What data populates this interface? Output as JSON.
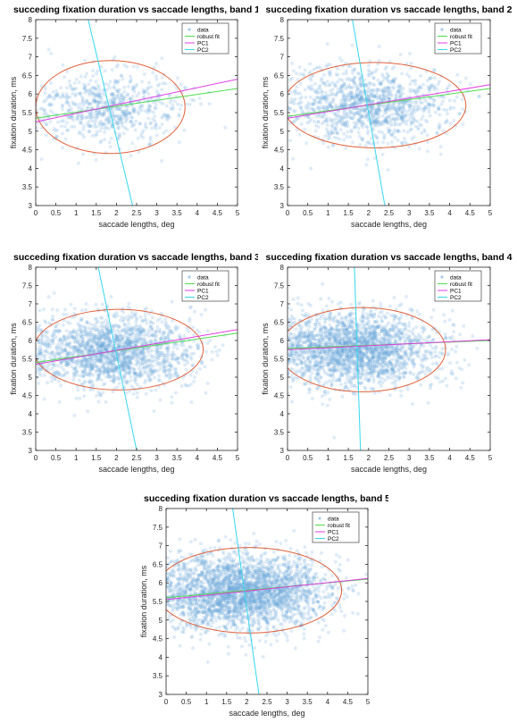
{
  "colors": {
    "data": "#6fa8dc",
    "robust_fit": "#4ddc4d",
    "pc1": "#e23ce2",
    "pc2": "#35d7ee",
    "ellipse": "#e0603a",
    "mean_line": "#777777"
  },
  "chart_data": [
    {
      "type": "scatter",
      "title": "succeding fixation duration vs saccade lengths, band 1",
      "xlabel": "saccade lengths, deg",
      "ylabel": "fixation duration, ms",
      "xlim": [
        0,
        5
      ],
      "ylim": [
        3,
        8
      ],
      "xticks": [
        "0",
        "0.5",
        "1",
        "1.5",
        "2",
        "2.5",
        "3",
        "3.5",
        "4",
        "4.5",
        "5"
      ],
      "yticks": [
        "3",
        "3.5",
        "4",
        "4.5",
        "5",
        "5.5",
        "6",
        "6.5",
        "7",
        "7.5",
        "8"
      ],
      "legend": [
        "data",
        "robust fit",
        "PC1",
        "PC2"
      ],
      "legend_placement": "top-right",
      "grid": false,
      "scatter_center": [
        1.8,
        5.6
      ],
      "scatter_spread": [
        0.9,
        0.5
      ],
      "n_points": 700,
      "robust_fit": [
        [
          0,
          5.35
        ],
        [
          5,
          6.15
        ]
      ],
      "pc1": [
        [
          0,
          5.25
        ],
        [
          5,
          6.4
        ]
      ],
      "pc2": [
        [
          1.3,
          8
        ],
        [
          2.4,
          3
        ]
      ],
      "ellipse": {
        "center": [
          1.85,
          5.65
        ],
        "rx": 1.85,
        "ry": 1.25
      }
    },
    {
      "type": "scatter",
      "title": "succeding fixation duration vs saccade lengths, band 2",
      "xlabel": "saccade lengths, deg",
      "ylabel": "fixation duration, ms",
      "xlim": [
        0,
        5
      ],
      "ylim": [
        3,
        8
      ],
      "xticks": [
        "0",
        "0.5",
        "1",
        "1.5",
        "2",
        "2.5",
        "3",
        "3.5",
        "4",
        "4.5",
        "5"
      ],
      "yticks": [
        "3",
        "3.5",
        "4",
        "4.5",
        "5",
        "5.5",
        "6",
        "6.5",
        "7",
        "7.5",
        "8"
      ],
      "legend": [
        "data",
        "robust fit",
        "PC1",
        "PC2"
      ],
      "legend_placement": "top-right",
      "grid": false,
      "scatter_center": [
        2.0,
        5.7
      ],
      "scatter_spread": [
        1.0,
        0.5
      ],
      "n_points": 1200,
      "robust_fit": [
        [
          0,
          5.4
        ],
        [
          5,
          6.15
        ]
      ],
      "pc1": [
        [
          0,
          5.35
        ],
        [
          5,
          6.25
        ]
      ],
      "pc2": [
        [
          1.6,
          8
        ],
        [
          2.4,
          3
        ]
      ],
      "ellipse": {
        "center": [
          2.15,
          5.7
        ],
        "rx": 2.25,
        "ry": 1.15
      }
    },
    {
      "type": "scatter",
      "title": "succeding fixation duration vs saccade lengths, band 3",
      "xlabel": "saccade lengths, deg",
      "ylabel": "fixation duration, ms",
      "xlim": [
        0,
        5
      ],
      "ylim": [
        3,
        8
      ],
      "xticks": [
        "0",
        "0.5",
        "1",
        "1.5",
        "2",
        "2.5",
        "3",
        "3.5",
        "4",
        "4.5",
        "5"
      ],
      "yticks": [
        "3",
        "3.5",
        "4",
        "4.5",
        "5",
        "5.5",
        "6",
        "6.5",
        "7",
        "7.5",
        "8"
      ],
      "legend": [
        "data",
        "robust fit",
        "PC1",
        "PC2"
      ],
      "legend_placement": "top-right",
      "grid": false,
      "scatter_center": [
        1.9,
        5.7
      ],
      "scatter_spread": [
        1.0,
        0.5
      ],
      "n_points": 1800,
      "robust_fit": [
        [
          0,
          5.4
        ],
        [
          5,
          6.2
        ]
      ],
      "pc1": [
        [
          0,
          5.35
        ],
        [
          5,
          6.3
        ]
      ],
      "pc2": [
        [
          1.55,
          8
        ],
        [
          2.5,
          3
        ]
      ],
      "ellipse": {
        "center": [
          2.05,
          5.75
        ],
        "rx": 2.1,
        "ry": 1.1
      }
    },
    {
      "type": "scatter",
      "title": "succeding fixation duration vs saccade lengths, band 4",
      "xlabel": "saccade lengths, deg",
      "ylabel": "fixation duration, ms",
      "xlim": [
        0,
        5
      ],
      "ylim": [
        3,
        8
      ],
      "xticks": [
        "0",
        "0.5",
        "1",
        "1.5",
        "2",
        "2.5",
        "3",
        "3.5",
        "4",
        "4.5",
        "5"
      ],
      "yticks": [
        "3",
        "3.5",
        "4",
        "4.5",
        "5",
        "5.5",
        "6",
        "6.5",
        "7",
        "7.5",
        "8"
      ],
      "legend": [
        "data",
        "robust fit",
        "PC1",
        "PC2"
      ],
      "legend_placement": "top-right",
      "grid": false,
      "scatter_center": [
        1.7,
        5.75
      ],
      "scatter_spread": [
        0.95,
        0.5
      ],
      "n_points": 2200,
      "robust_fit": [
        [
          0,
          5.78
        ],
        [
          5,
          6.0
        ]
      ],
      "pc1": [
        [
          0,
          5.75
        ],
        [
          5,
          6.02
        ]
      ],
      "pc2": [
        [
          1.65,
          8
        ],
        [
          1.8,
          3
        ]
      ],
      "ellipse": {
        "center": [
          1.85,
          5.75
        ],
        "rx": 2.05,
        "ry": 1.15
      }
    },
    {
      "type": "scatter",
      "title": "succeding fixation duration vs saccade lengths, band 5",
      "xlabel": "saccade lengths, deg",
      "ylabel": "fixation duration, ms",
      "xlim": [
        0,
        5
      ],
      "ylim": [
        3,
        8
      ],
      "xticks": [
        "0",
        "0.5",
        "1",
        "1.5",
        "2",
        "2.5",
        "3",
        "3.5",
        "4",
        "4.5",
        "5"
      ],
      "yticks": [
        "3",
        "3.5",
        "4",
        "4.5",
        "5",
        "5.5",
        "6",
        "6.5",
        "7",
        "7.5",
        "8"
      ],
      "legend": [
        "data",
        "robust fit",
        "PC1",
        "PC2"
      ],
      "legend_placement": "top-right",
      "grid": false,
      "scatter_center": [
        1.9,
        5.75
      ],
      "scatter_spread": [
        1.05,
        0.5
      ],
      "n_points": 2800,
      "robust_fit": [
        [
          0,
          5.6
        ],
        [
          5,
          6.1
        ]
      ],
      "pc1": [
        [
          0,
          5.55
        ],
        [
          5,
          6.12
        ]
      ],
      "pc2": [
        [
          1.65,
          8
        ],
        [
          2.3,
          3
        ]
      ],
      "ellipse": {
        "center": [
          2.05,
          5.8
        ],
        "rx": 2.3,
        "ry": 1.15
      }
    }
  ]
}
